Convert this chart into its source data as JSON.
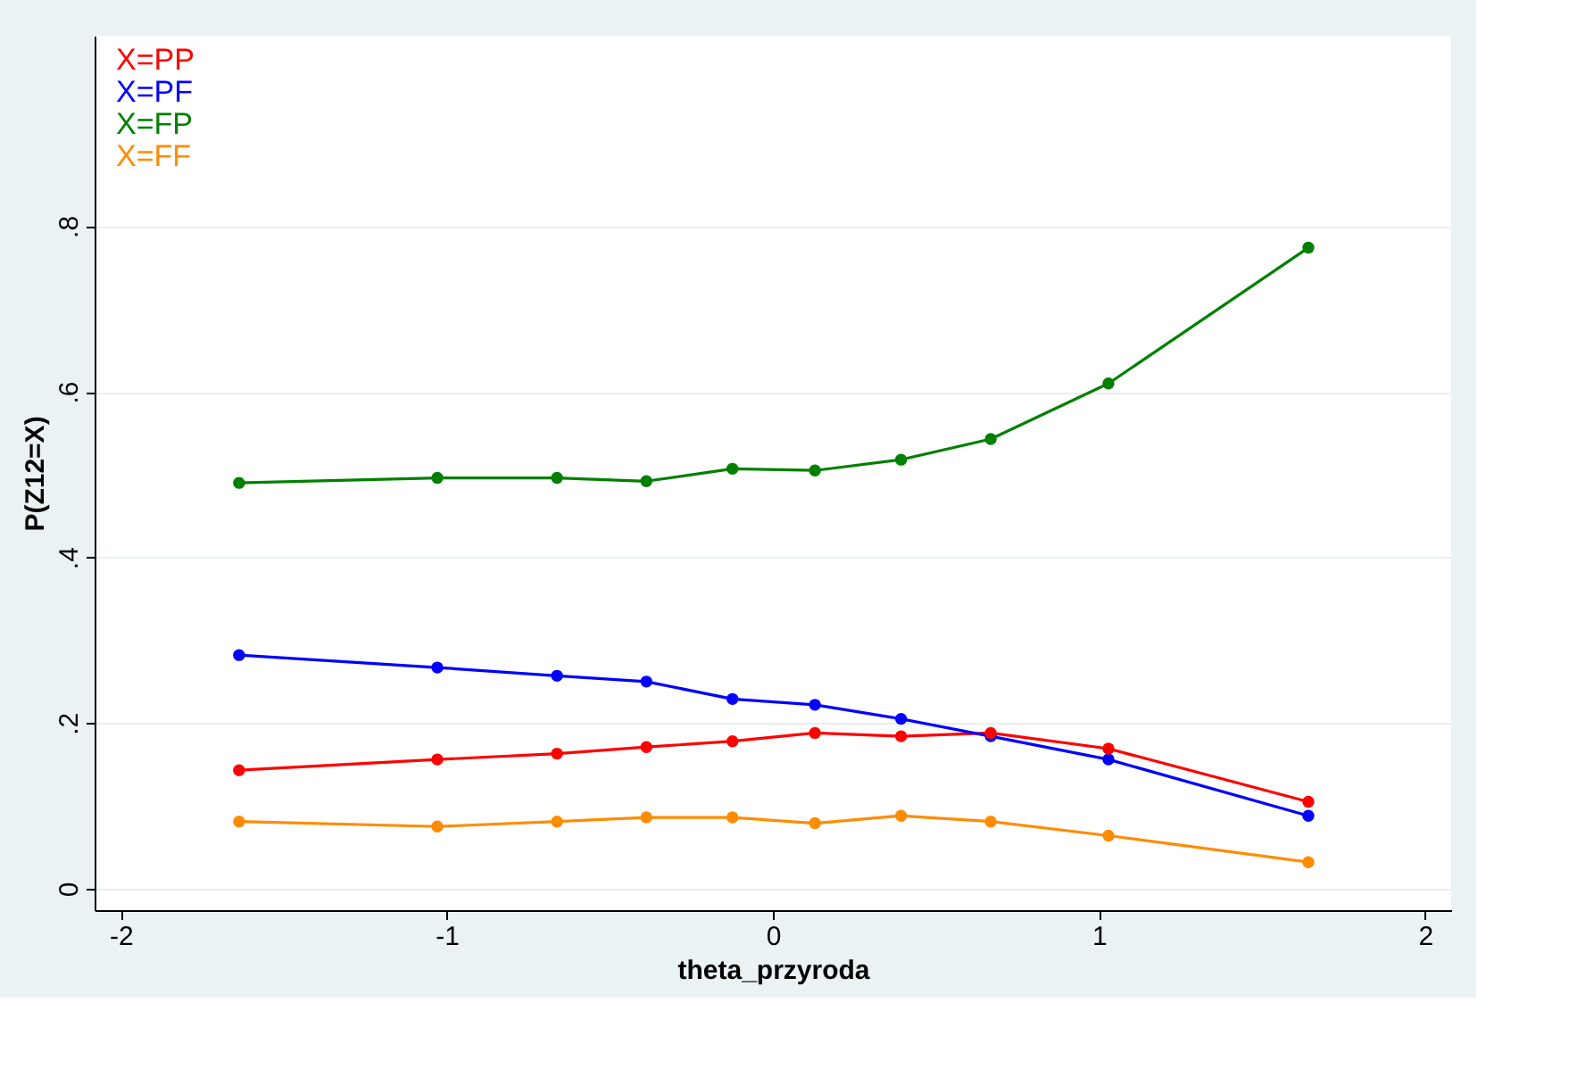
{
  "chart_data": {
    "type": "line",
    "xlabel": "theta_przyroda",
    "ylabel": "P(Z12=X)",
    "x": [
      -1.637,
      -1.029,
      -0.662,
      -0.388,
      -0.124,
      0.129,
      0.393,
      0.668,
      1.029,
      1.642
    ],
    "series": [
      {
        "name": "X=PP",
        "color": "#ff0000",
        "values": [
          0.143,
          0.156,
          0.163,
          0.171,
          0.178,
          0.188,
          0.184,
          0.188,
          0.169,
          0.105
        ]
      },
      {
        "name": "X=PF",
        "color": "#0000ff",
        "values": [
          0.282,
          0.267,
          0.257,
          0.25,
          0.229,
          0.222,
          0.205,
          0.184,
          0.156,
          0.088
        ]
      },
      {
        "name": "X=FP",
        "color": "#008000",
        "values": [
          0.49,
          0.496,
          0.496,
          0.492,
          0.507,
          0.505,
          0.518,
          0.543,
          0.61,
          0.774
        ]
      },
      {
        "name": "X=FF",
        "color": "#ff8c00",
        "values": [
          0.081,
          0.075,
          0.081,
          0.086,
          0.086,
          0.079,
          0.088,
          0.081,
          0.064,
          0.032
        ]
      }
    ],
    "xlim": [
      -2.08,
      2.08
    ],
    "xticks": [
      -2,
      -1,
      0,
      1,
      2
    ],
    "ylim": [
      -0.026,
      1.03
    ],
    "yticks": [
      0,
      {
        "value": 0.2,
        "label": ".2"
      },
      {
        "value": 0.4,
        "label": ".4"
      },
      {
        "value": 0.6,
        "label": ".6"
      },
      {
        "value": 0.8,
        "label": ".8"
      }
    ],
    "grid": "y",
    "legend": "top left",
    "marker": "circle",
    "line_style": "solid"
  }
}
